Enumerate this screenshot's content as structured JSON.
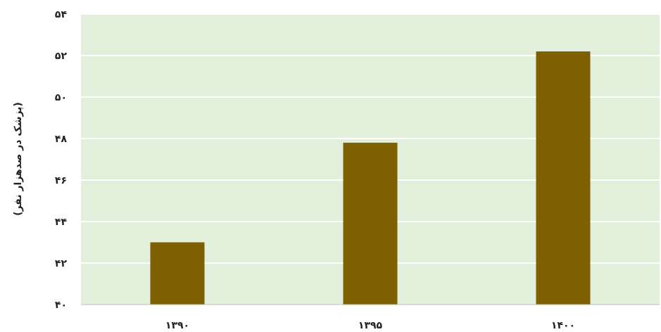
{
  "chart_data": {
    "type": "bar",
    "title": "",
    "xlabel": "",
    "ylabel": "(پزشک در صدهزار نفر)",
    "categories": [
      "۱۳۹۰",
      "۱۳۹۵",
      "۱۴۰۰"
    ],
    "values": [
      43.0,
      47.8,
      52.2
    ],
    "ylim": [
      40,
      54
    ],
    "yticks": [
      40,
      42,
      44,
      46,
      48,
      50,
      52,
      54
    ],
    "ytick_labels": [
      "۴۰",
      "۴۲",
      "۴۴",
      "۴۶",
      "۴۸",
      "۵۰",
      "۵۲",
      "۵۴"
    ],
    "grid": true,
    "legend": "none",
    "colors": {
      "bar": "#7f6000",
      "plot_background": "#e2efda",
      "gridline": "#ffffff",
      "axis_line": "#bfbfbf"
    }
  }
}
